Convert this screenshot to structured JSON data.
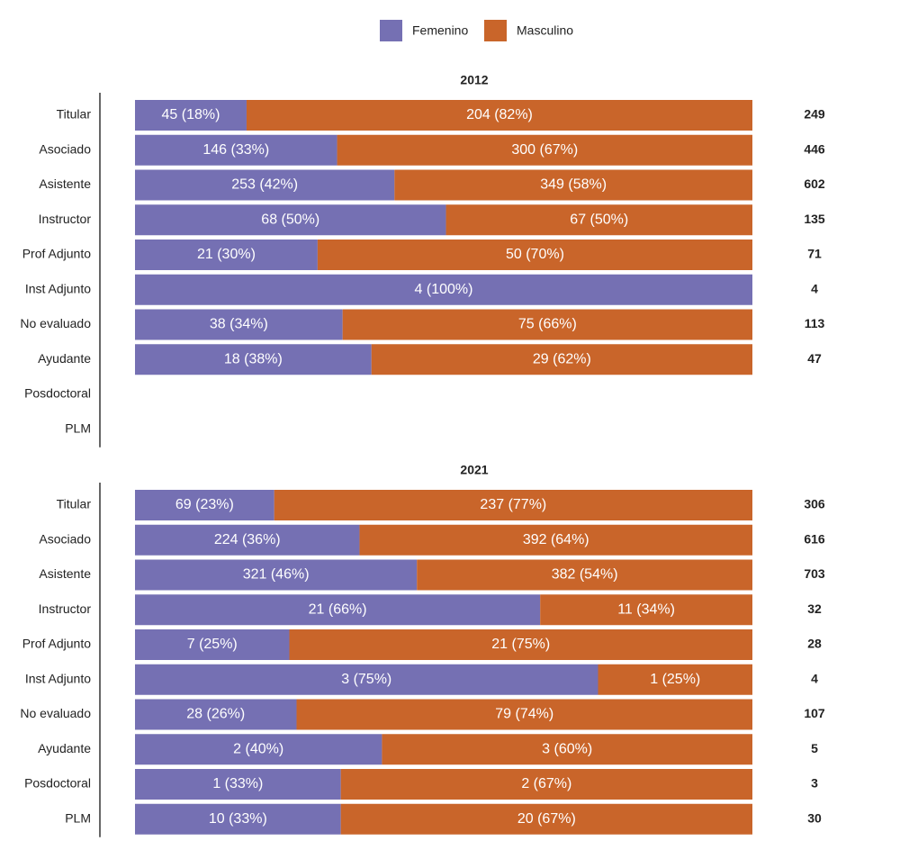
{
  "chart_data": [
    {
      "type": "bar",
      "stacked": "percent",
      "orientation": "horizontal",
      "title": "2012",
      "categories": [
        "Titular",
        "Asociado",
        "Asistente",
        "Instructor",
        "Prof Adjunto",
        "Inst Adjunto",
        "No evaluado",
        "Ayudante",
        "Posdoctoral",
        "PLM"
      ],
      "series": [
        {
          "name": "Femenino",
          "color": "#7570b3",
          "values": [
            45,
            146,
            253,
            68,
            21,
            4,
            38,
            18,
            null,
            null
          ],
          "value_labels": [
            "45 (18%)",
            "146 (33%)",
            "253 (42%)",
            "68 (50%)",
            "21 (30%)",
            "4 (100%)",
            "38 (34%)",
            "18 (38%)",
            null,
            null
          ]
        },
        {
          "name": "Masculino",
          "color": "#c9652a",
          "values": [
            204,
            300,
            349,
            67,
            50,
            0,
            75,
            29,
            null,
            null
          ],
          "value_labels": [
            "204 (82%)",
            "300 (67%)",
            "349 (58%)",
            "67 (50%)",
            "50 (70%)",
            null,
            "75 (66%)",
            "29 (62%)",
            null,
            null
          ]
        }
      ],
      "totals": [
        249,
        446,
        602,
        135,
        71,
        4,
        113,
        47,
        null,
        null
      ]
    },
    {
      "type": "bar",
      "stacked": "percent",
      "orientation": "horizontal",
      "title": "2021",
      "categories": [
        "Titular",
        "Asociado",
        "Asistente",
        "Instructor",
        "Prof Adjunto",
        "Inst Adjunto",
        "No evaluado",
        "Ayudante",
        "Posdoctoral",
        "PLM"
      ],
      "series": [
        {
          "name": "Femenino",
          "color": "#7570b3",
          "values": [
            69,
            224,
            321,
            21,
            7,
            3,
            28,
            2,
            1,
            10
          ],
          "value_labels": [
            "69 (23%)",
            "224 (36%)",
            "321 (46%)",
            "21 (66%)",
            "7 (25%)",
            "3 (75%)",
            "28 (26%)",
            "2 (40%)",
            "1 (33%)",
            "10 (33%)"
          ]
        },
        {
          "name": "Masculino",
          "color": "#c9652a",
          "values": [
            237,
            392,
            382,
            11,
            21,
            1,
            79,
            3,
            2,
            20
          ],
          "value_labels": [
            "237 (77%)",
            "392 (64%)",
            "382 (54%)",
            "11 (34%)",
            "21 (75%)",
            "1 (25%)",
            "79 (74%)",
            "3 (60%)",
            "2 (67%)",
            "20 (67%)"
          ]
        }
      ],
      "totals": [
        306,
        616,
        703,
        32,
        28,
        4,
        107,
        5,
        3,
        30
      ]
    }
  ]
}
